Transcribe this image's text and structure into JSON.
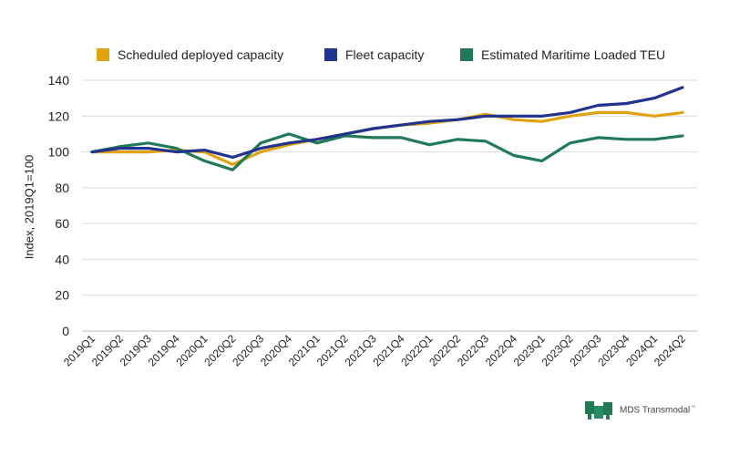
{
  "chart_data": {
    "type": "line",
    "title": "",
    "xlabel": "",
    "ylabel": "Index, 2019Q1=100",
    "ylim": [
      0,
      140
    ],
    "yticks": [
      0,
      20,
      40,
      60,
      80,
      100,
      120,
      140
    ],
    "grid": true,
    "legend_position": "top",
    "categories": [
      "2019Q1",
      "2019Q2",
      "2019Q3",
      "2019Q4",
      "2020Q1",
      "2020Q2",
      "2020Q3",
      "2020Q4",
      "2021Q1",
      "2021Q2",
      "2021Q3",
      "2021Q4",
      "2022Q1",
      "2022Q2",
      "2022Q3",
      "2022Q4",
      "2023Q1",
      "2023Q2",
      "2023Q3",
      "2023Q4",
      "2024Q1",
      "2024Q2"
    ],
    "series": [
      {
        "name": "Scheduled deployed capacity",
        "color": "#E0A30F",
        "values": [
          100,
          100,
          100,
          101,
          100,
          93,
          100,
          104,
          107,
          110,
          113,
          115,
          116,
          118,
          121,
          118,
          117,
          120,
          122,
          122,
          120,
          122
        ]
      },
      {
        "name": "Estimated Maritime Loaded TEU",
        "color": "#1F7A55",
        "values": [
          100,
          103,
          105,
          102,
          95,
          90,
          105,
          110,
          105,
          109,
          108,
          108,
          104,
          107,
          106,
          98,
          95,
          105,
          108,
          107,
          107,
          109
        ]
      },
      {
        "name": "Fleet capacity",
        "color": "#22328F",
        "values": [
          100,
          102,
          102,
          100,
          101,
          97,
          102,
          105,
          107,
          110,
          113,
          115,
          117,
          118,
          120,
          120,
          120,
          122,
          126,
          127,
          130,
          136
        ]
      }
    ],
    "legend_order": [
      0,
      2,
      1
    ]
  },
  "branding": {
    "logo_name": "MDS Transmodal",
    "logo_trademark": "™",
    "logo_color": "#1F7A55"
  }
}
